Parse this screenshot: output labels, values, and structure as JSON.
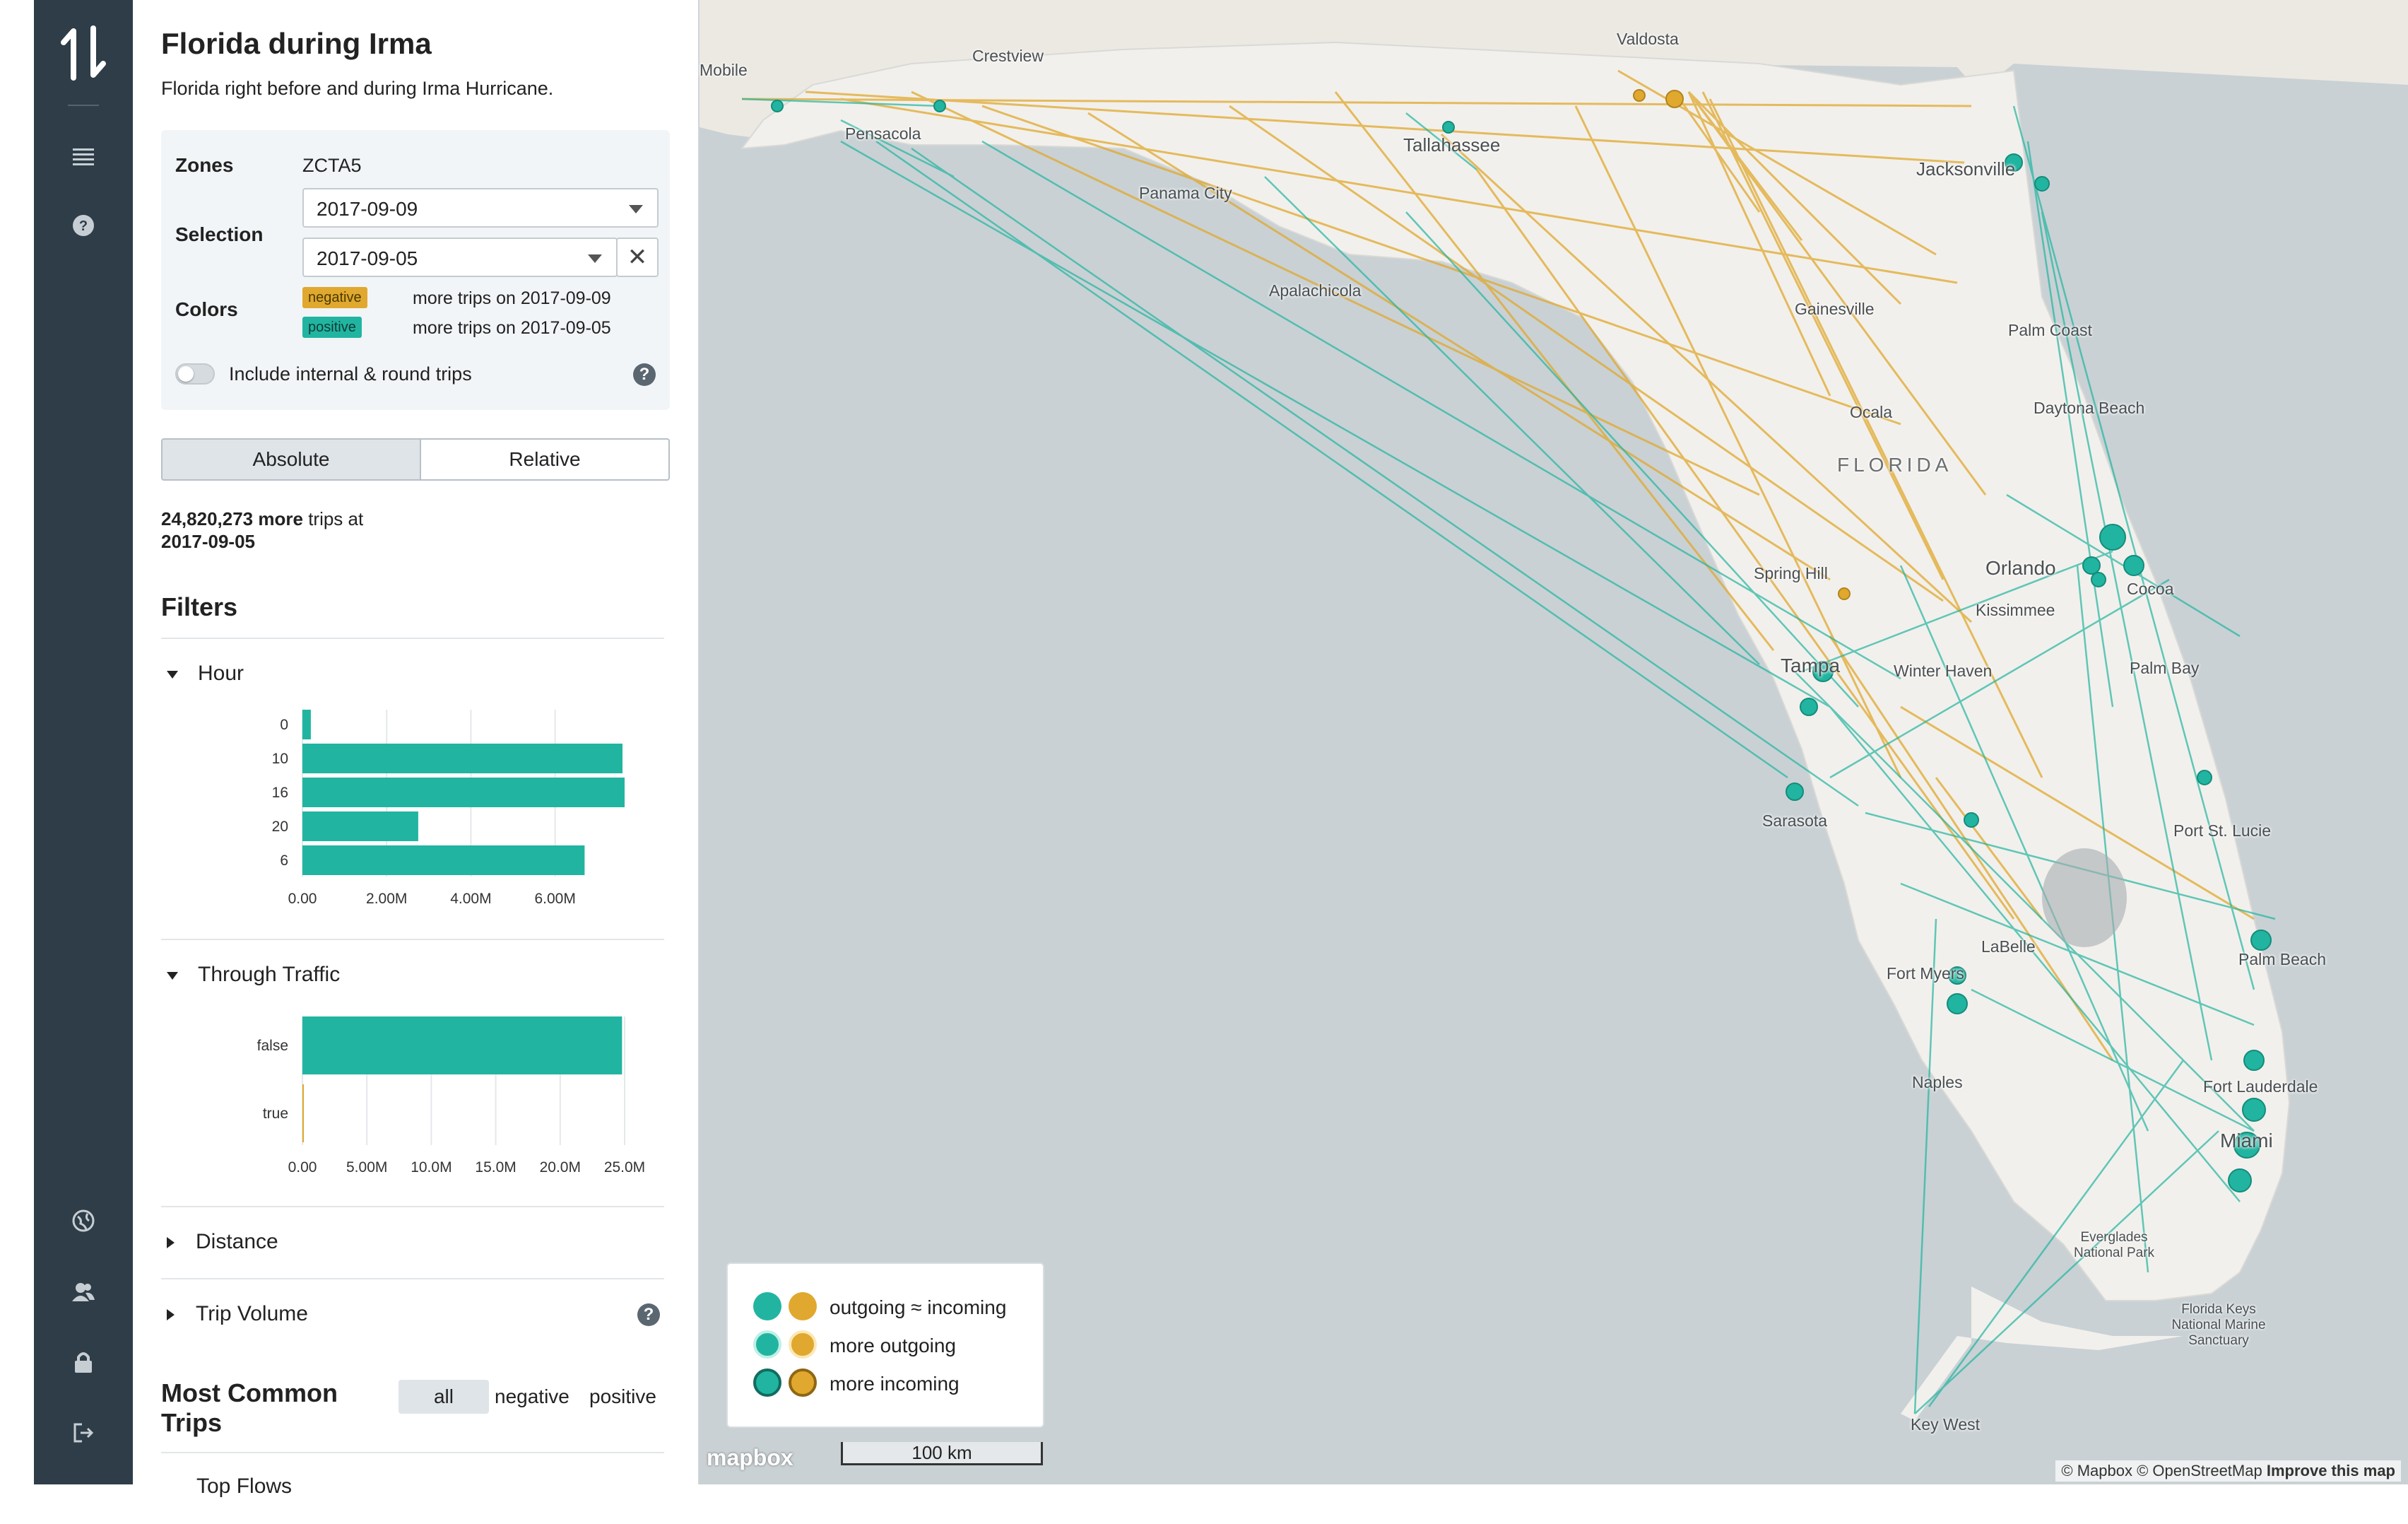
{
  "colors": {
    "teal": "#21b5a1",
    "orange": "#e0a82e",
    "navbar": "#2e3d48"
  },
  "nav": {
    "icons": [
      "logo-icon",
      "menu-icon",
      "help-icon",
      "globe-icon",
      "users-icon",
      "lock-icon",
      "logout-icon"
    ]
  },
  "panel": {
    "title": "Florida during Irma",
    "subtitle": "Florida right before and during Irma Hurricane.",
    "zones_label": "Zones",
    "zones_value": "ZCTA5",
    "selection_label": "Selection",
    "selection_1": "2017-09-09",
    "selection_2": "2017-09-05",
    "clear_symbol": "✕",
    "colors_label": "Colors",
    "negative_chip": "negative",
    "positive_chip": "positive",
    "negative_text": "more trips on 2017-09-09",
    "positive_text": "more trips on 2017-09-05",
    "toggle_label": "Include internal & round trips",
    "toggle_on": false,
    "help_symbol": "?",
    "seg_absolute": "Absolute",
    "seg_relative": "Relative",
    "summary_number": "24,820,273",
    "summary_more": "more",
    "summary_rest": "trips at",
    "summary_date": "2017-09-05",
    "filters_title": "Filters",
    "hour_title": "Hour",
    "through_title": "Through Traffic",
    "distance_title": "Distance",
    "volume_title": "Trip Volume",
    "common_title_1": "Most Common",
    "common_title_2": "Trips",
    "tab_all": "all",
    "tab_negative": "negative",
    "tab_positive": "positive",
    "cut_text": "Top Flows"
  },
  "chart_data": [
    {
      "type": "bar",
      "orientation": "horizontal",
      "categories": [
        "0",
        "10",
        "16",
        "20",
        "6"
      ],
      "values": [
        0.2,
        7.6,
        7.65,
        2.75,
        6.7
      ],
      "value_unit": "M",
      "xticks": [
        "0.00",
        "2.00M",
        "4.00M",
        "6.00M"
      ],
      "xlim": [
        0,
        7.65
      ]
    },
    {
      "type": "bar",
      "orientation": "horizontal",
      "categories": [
        "false",
        "true"
      ],
      "values": [
        24.8,
        0.05
      ],
      "value_unit": "M",
      "xticks": [
        "0.00",
        "5.00M",
        "10.0M",
        "15.0M",
        "20.0M",
        "25.0M"
      ],
      "xlim": [
        0,
        25
      ]
    }
  ],
  "map": {
    "legend": {
      "row1": "outgoing ≈ incoming",
      "row2": "more outgoing",
      "row3": "more incoming"
    },
    "labels": [
      {
        "text": "Valdosta"
      },
      {
        "text": "Mobile"
      },
      {
        "text": "Crestview"
      },
      {
        "text": "Pensacola"
      },
      {
        "text": "Tallahassee"
      },
      {
        "text": "Panama City"
      },
      {
        "text": "Apalachicola"
      },
      {
        "text": "Jacksonville"
      },
      {
        "text": "Gainesville"
      },
      {
        "text": "Palm Coast"
      },
      {
        "text": "Ocala"
      },
      {
        "text": "Daytona Beach"
      },
      {
        "text": "FLORIDA"
      },
      {
        "text": "Spring Hill"
      },
      {
        "text": "Orlando"
      },
      {
        "text": "Kissimmee"
      },
      {
        "text": "Cocoa"
      },
      {
        "text": "Tampa"
      },
      {
        "text": "Winter Haven"
      },
      {
        "text": "Palm Bay"
      },
      {
        "text": "Sarasota"
      },
      {
        "text": "Port St. Lucie"
      },
      {
        "text": "LaBelle"
      },
      {
        "text": "Fort Myers"
      },
      {
        "text": "Palm Beach"
      },
      {
        "text": "Naples"
      },
      {
        "text": "Fort Lauderdale"
      },
      {
        "text": "Miami"
      },
      {
        "text": "Everglades National Park"
      },
      {
        "text": "Florida Keys National Marine Sanctuary"
      },
      {
        "text": "Key West"
      }
    ],
    "scale_label": "100 km",
    "mapbox_label": "mapbox",
    "attribution": "© Mapbox © OpenStreetMap",
    "improve": "Improve this map"
  }
}
